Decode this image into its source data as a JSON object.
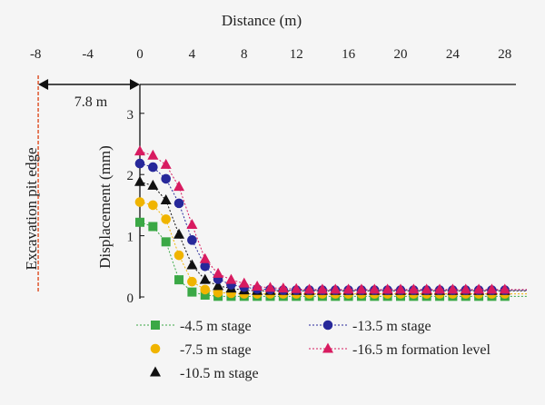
{
  "chart_data": {
    "type": "scatter",
    "title": "",
    "xlabel": "Distance (m)",
    "ylabel": "Displacement (mm)",
    "xlim": [
      -8,
      29.5
    ],
    "ylim": [
      0,
      3.5
    ],
    "x_ticks": [
      -8,
      -4,
      0,
      4,
      8,
      12,
      16,
      20,
      24,
      28
    ],
    "y_ticks": [
      0,
      1,
      2,
      3
    ],
    "grid": false,
    "legend_placement": "bottom",
    "annotations": {
      "pit_edge_label": "Excavation pit edge",
      "pit_edge_x": -7.8,
      "distance_label": "7.8 m"
    },
    "series": [
      {
        "name": "-4.5 m stage",
        "color": "#3aa845",
        "marker": "square",
        "x": [
          0,
          1,
          2,
          3,
          4,
          5,
          6,
          7,
          8,
          9,
          10,
          11,
          12,
          13,
          14,
          15,
          16,
          17,
          18,
          19,
          20,
          21,
          22,
          23,
          24,
          25,
          26,
          27,
          28
        ],
        "values": [
          1.22,
          1.15,
          0.9,
          0.28,
          0.08,
          0.03,
          0.01,
          0.01,
          0.01,
          0.01,
          0.01,
          0.01,
          0.01,
          0.01,
          0.01,
          0.01,
          0.01,
          0.01,
          0.01,
          0.01,
          0.01,
          0.01,
          0.01,
          0.01,
          0.01,
          0.01,
          0.01,
          0.01,
          0.01
        ]
      },
      {
        "name": "-7.5 m stage",
        "color": "#f0b400",
        "marker": "circle",
        "x": [
          0,
          1,
          2,
          3,
          4,
          5,
          6,
          7,
          8,
          9,
          10,
          11,
          12,
          13,
          14,
          15,
          16,
          17,
          18,
          19,
          20,
          21,
          22,
          23,
          24,
          25,
          26,
          27,
          28
        ],
        "values": [
          1.55,
          1.5,
          1.27,
          0.68,
          0.25,
          0.12,
          0.07,
          0.06,
          0.05,
          0.05,
          0.05,
          0.05,
          0.05,
          0.05,
          0.05,
          0.05,
          0.05,
          0.05,
          0.05,
          0.05,
          0.05,
          0.05,
          0.05,
          0.05,
          0.05,
          0.05,
          0.05,
          0.05,
          0.05
        ]
      },
      {
        "name": "-10.5 m stage",
        "color": "#111111",
        "marker": "triangle",
        "x": [
          0,
          1,
          2,
          3,
          4,
          5,
          6,
          7,
          8,
          9,
          10,
          11,
          12,
          13,
          14,
          15,
          16,
          17,
          18,
          19,
          20,
          21,
          22,
          23,
          24,
          25,
          26,
          27,
          28
        ],
        "values": [
          1.88,
          1.82,
          1.58,
          1.02,
          0.52,
          0.28,
          0.18,
          0.14,
          0.11,
          0.1,
          0.1,
          0.1,
          0.1,
          0.1,
          0.1,
          0.1,
          0.1,
          0.1,
          0.1,
          0.1,
          0.1,
          0.1,
          0.1,
          0.1,
          0.1,
          0.1,
          0.1,
          0.1,
          0.1
        ]
      },
      {
        "name": "-13.5 m stage",
        "color": "#27289a",
        "marker": "circle",
        "x": [
          0,
          1,
          2,
          3,
          4,
          5,
          6,
          7,
          8,
          9,
          10,
          11,
          12,
          13,
          14,
          15,
          16,
          17,
          18,
          19,
          20,
          21,
          22,
          23,
          24,
          25,
          26,
          27,
          28
        ],
        "values": [
          2.18,
          2.12,
          1.93,
          1.53,
          0.93,
          0.5,
          0.29,
          0.2,
          0.16,
          0.13,
          0.12,
          0.11,
          0.11,
          0.11,
          0.11,
          0.11,
          0.11,
          0.11,
          0.11,
          0.11,
          0.11,
          0.11,
          0.11,
          0.11,
          0.11,
          0.11,
          0.11,
          0.11,
          0.11
        ]
      },
      {
        "name": "-16.5 m formation level",
        "color": "#d81b60",
        "marker": "triangle",
        "x": [
          0,
          1,
          2,
          3,
          4,
          5,
          6,
          7,
          8,
          9,
          10,
          11,
          12,
          13,
          14,
          15,
          16,
          17,
          18,
          19,
          20,
          21,
          22,
          23,
          24,
          25,
          26,
          27,
          28
        ],
        "values": [
          2.38,
          2.31,
          2.16,
          1.8,
          1.18,
          0.62,
          0.38,
          0.28,
          0.22,
          0.17,
          0.15,
          0.14,
          0.13,
          0.12,
          0.12,
          0.12,
          0.12,
          0.12,
          0.12,
          0.12,
          0.12,
          0.12,
          0.12,
          0.12,
          0.12,
          0.12,
          0.12,
          0.12,
          0.12
        ]
      }
    ]
  }
}
